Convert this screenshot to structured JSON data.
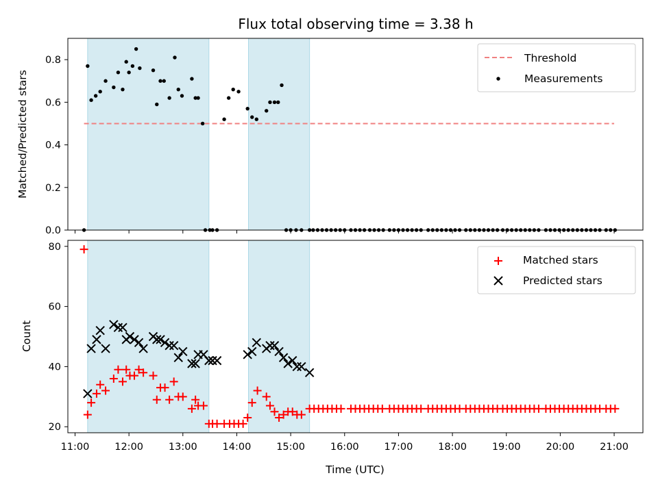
{
  "title": "Flux total observing time = 3.38 h",
  "colors": {
    "band": "#add8e6",
    "threshold": "#f08080",
    "matched": "#ff0000",
    "predicted": "#000000",
    "measurement": "#000000"
  },
  "chart_data": [
    {
      "type": "scatter",
      "ylabel": "Matched/Predicted stars",
      "ylim": [
        0,
        0.9
      ],
      "xlim": [
        "10:52",
        "21:32"
      ],
      "yticks": [
        "0.0",
        "0.2",
        "0.4",
        "0.6",
        "0.8"
      ],
      "shaded_intervals": [
        [
          "11:14",
          "13:29"
        ],
        [
          "14:13",
          "15:21"
        ]
      ],
      "legend": {
        "position": "top-right",
        "entries": [
          "Threshold",
          "Measurements"
        ]
      },
      "series": [
        {
          "name": "Threshold",
          "kind": "dashed-line",
          "x": [
            "11:10",
            "21:00"
          ],
          "y": [
            0.5,
            0.5
          ]
        },
        {
          "name": "Measurements",
          "kind": "dots",
          "x": [
            "11:10",
            "11:14",
            "11:18",
            "11:23",
            "11:28",
            "11:34",
            "11:43",
            "11:48",
            "11:53",
            "11:57",
            "12:00",
            "12:04",
            "12:08",
            "12:12",
            "12:27",
            "12:31",
            "12:35",
            "12:39",
            "12:45",
            "12:51",
            "12:55",
            "12:59",
            "13:10",
            "13:14",
            "13:17",
            "13:22",
            "13:25",
            "13:30",
            "13:33",
            "13:38",
            "13:46",
            "13:51",
            "13:56",
            "14:02",
            "14:12",
            "14:17",
            "14:22",
            "14:33",
            "14:37",
            "14:42",
            "14:46",
            "14:50",
            "14:55",
            "15:00",
            "15:06",
            "15:12",
            "15:21",
            "15:25",
            "15:30",
            "15:35",
            "15:40",
            "15:45",
            "15:50",
            "15:55",
            "16:00",
            "16:07",
            "16:12",
            "16:17",
            "16:22",
            "16:28",
            "16:33",
            "16:38",
            "16:43",
            "16:50",
            "16:55",
            "17:00",
            "17:05",
            "17:10",
            "17:15",
            "17:20",
            "17:25",
            "17:33",
            "17:38",
            "17:43",
            "17:48",
            "17:53",
            "17:58",
            "18:03",
            "18:08",
            "18:15",
            "18:20",
            "18:25",
            "18:30",
            "18:35",
            "18:40",
            "18:45",
            "18:50",
            "18:56",
            "19:01",
            "19:06",
            "19:11",
            "19:16",
            "19:21",
            "19:26",
            "19:31",
            "19:36",
            "19:44",
            "19:49",
            "19:54",
            "19:59",
            "20:04",
            "20:09",
            "20:14",
            "20:19",
            "20:24",
            "20:29",
            "20:34",
            "20:39",
            "20:44",
            "20:51",
            "20:56",
            "21:01"
          ],
          "y": [
            0,
            0.77,
            0.61,
            0.63,
            0.65,
            0.7,
            0.67,
            0.74,
            0.66,
            0.79,
            0.74,
            0.77,
            0.85,
            0.76,
            0.75,
            0.59,
            0.7,
            0.7,
            0.62,
            0.81,
            0.66,
            0.63,
            0.71,
            0.62,
            0.62,
            0.5,
            0,
            0,
            0,
            0,
            0.52,
            0.62,
            0.66,
            0.65,
            0.57,
            0.53,
            0.52,
            0.56,
            0.6,
            0.6,
            0.6,
            0.68,
            0,
            0,
            0,
            0,
            0,
            0,
            0,
            0,
            0,
            0,
            0,
            0,
            0,
            0,
            0,
            0,
            0,
            0,
            0,
            0,
            0,
            0,
            0,
            0,
            0,
            0,
            0,
            0,
            0,
            0,
            0,
            0,
            0,
            0,
            0,
            0,
            0,
            0,
            0,
            0,
            0,
            0,
            0,
            0,
            0,
            0,
            0,
            0,
            0,
            0,
            0,
            0,
            0,
            0,
            0,
            0,
            0,
            0,
            0,
            0,
            0,
            0,
            0,
            0,
            0,
            0,
            0,
            0,
            0,
            0
          ]
        }
      ]
    },
    {
      "type": "scatter",
      "xlabel": "Time (UTC)",
      "ylabel": "Count",
      "ylim": [
        18,
        82
      ],
      "xlim": [
        "10:52",
        "21:32"
      ],
      "yticks": [
        "20",
        "40",
        "60",
        "80"
      ],
      "xticks": [
        "11:00",
        "12:00",
        "13:00",
        "14:00",
        "15:00",
        "16:00",
        "17:00",
        "18:00",
        "19:00",
        "20:00",
        "21:00"
      ],
      "shaded_intervals": [
        [
          "11:14",
          "13:29"
        ],
        [
          "14:13",
          "15:21"
        ]
      ],
      "legend": {
        "position": "top-right",
        "entries": [
          "Matched stars",
          "Predicted stars"
        ]
      },
      "series": [
        {
          "name": "Matched stars",
          "kind": "plus",
          "x": [
            "11:10",
            "11:14",
            "11:18",
            "11:24",
            "11:28",
            "11:34",
            "11:43",
            "11:48",
            "11:53",
            "11:57",
            "12:01",
            "12:06",
            "12:11",
            "12:16",
            "12:27",
            "12:31",
            "12:35",
            "12:40",
            "12:45",
            "12:50",
            "12:55",
            "13:00",
            "13:10",
            "13:14",
            "13:17",
            "13:23",
            "13:29",
            "13:33",
            "13:38",
            "13:46",
            "13:52",
            "13:57",
            "14:02",
            "14:07",
            "14:12",
            "14:17",
            "14:23",
            "14:33",
            "14:37",
            "14:42",
            "14:47",
            "14:52",
            "14:57",
            "15:02",
            "15:07",
            "15:12",
            "15:21",
            "15:26",
            "15:31",
            "15:36",
            "15:41",
            "15:46",
            "15:51",
            "15:56",
            "16:07",
            "16:12",
            "16:17",
            "16:22",
            "16:27",
            "16:32",
            "16:37",
            "16:42",
            "16:50",
            "16:55",
            "17:00",
            "17:05",
            "17:10",
            "17:15",
            "17:20",
            "17:25",
            "17:33",
            "17:38",
            "17:43",
            "17:48",
            "17:53",
            "17:58",
            "18:03",
            "18:08",
            "18:15",
            "18:20",
            "18:25",
            "18:30",
            "18:35",
            "18:40",
            "18:45",
            "18:50",
            "18:56",
            "19:01",
            "19:06",
            "19:11",
            "19:16",
            "19:21",
            "19:26",
            "19:31",
            "19:36",
            "19:44",
            "19:49",
            "19:54",
            "19:59",
            "20:04",
            "20:09",
            "20:14",
            "20:19",
            "20:24",
            "20:29",
            "20:34",
            "20:39",
            "20:44",
            "20:51",
            "20:56",
            "21:01"
          ],
          "y": [
            79,
            24,
            28,
            31,
            34,
            32,
            36,
            39,
            35,
            39,
            37,
            37,
            39,
            38,
            37,
            29,
            33,
            33,
            29,
            35,
            30,
            30,
            26,
            29,
            27,
            27,
            21,
            21,
            21,
            21,
            21,
            21,
            21,
            21,
            23,
            28,
            32,
            30,
            27,
            25,
            23,
            24,
            25,
            25,
            24,
            24,
            26,
            26,
            26,
            26,
            26,
            26,
            26,
            26,
            26,
            26,
            26,
            26,
            26,
            26,
            26,
            26,
            26,
            26,
            26,
            26,
            26,
            26,
            26,
            26,
            26,
            26,
            26,
            26,
            26,
            26,
            26,
            26,
            26,
            26,
            26,
            26,
            26,
            26,
            26,
            26,
            26,
            26,
            26,
            26,
            26,
            26,
            26,
            26,
            26,
            26,
            26,
            26,
            26,
            26,
            26,
            26,
            26,
            26,
            26,
            26,
            26,
            26,
            26,
            26,
            26
          ]
        },
        {
          "name": "Predicted stars",
          "kind": "cross",
          "x": [
            "11:14",
            "11:18",
            "11:24",
            "11:28",
            "11:34",
            "11:43",
            "11:48",
            "11:53",
            "11:57",
            "12:01",
            "12:06",
            "12:11",
            "12:16",
            "12:27",
            "12:31",
            "12:35",
            "12:40",
            "12:45",
            "12:50",
            "12:55",
            "13:00",
            "13:10",
            "13:14",
            "13:17",
            "13:23",
            "13:29",
            "13:33",
            "13:38",
            "14:12",
            "14:17",
            "14:22",
            "14:33",
            "14:37",
            "14:42",
            "14:47",
            "14:52",
            "14:57",
            "15:02",
            "15:07",
            "15:12",
            "15:21"
          ],
          "y": [
            31,
            46,
            49,
            52,
            46,
            54,
            53,
            53,
            49,
            50,
            49,
            48,
            46,
            50,
            49,
            49,
            48,
            47,
            47,
            43,
            45,
            41,
            41,
            44,
            44,
            42,
            42,
            42,
            44,
            45,
            48,
            46,
            47,
            47,
            45,
            43,
            41,
            42,
            40,
            40,
            38
          ]
        }
      ]
    }
  ]
}
